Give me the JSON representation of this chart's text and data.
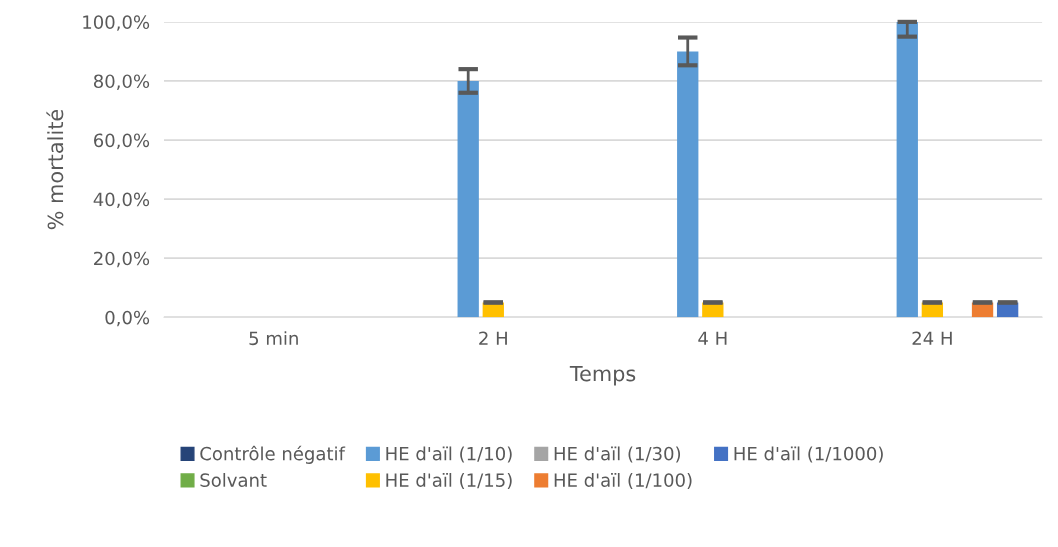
{
  "chart_data": {
    "type": "bar",
    "xlabel": "Temps",
    "ylabel": "% mortalité",
    "categories": [
      "5 min",
      "2 H",
      "4 H",
      "24 H"
    ],
    "series": [
      {
        "name": "Contrôle négatif",
        "color": "#264478",
        "values": [
          0,
          0,
          0,
          0
        ]
      },
      {
        "name": "Solvant",
        "color": "#70ad47",
        "values": [
          0,
          0,
          0,
          0
        ]
      },
      {
        "name": "HE d'aïl (1/10)",
        "color": "#5b9bd5",
        "values": [
          0,
          80,
          90,
          100
        ],
        "errors": [
          null,
          4,
          4.7,
          [
            95,
            100
          ]
        ]
      },
      {
        "name": "HE d'aïl (1/15)",
        "color": "#ffc000",
        "values": [
          0,
          5,
          5,
          5
        ],
        "errors": [
          null,
          0,
          0,
          0
        ]
      },
      {
        "name": "HE d'aïl (1/30)",
        "color": "#a5a5a5",
        "values": [
          0,
          0,
          0,
          0
        ]
      },
      {
        "name": "HE d'aïl (1/100)",
        "color": "#ed7d31",
        "values": [
          0,
          0,
          0,
          5
        ],
        "errors": [
          null,
          null,
          null,
          0
        ]
      },
      {
        "name": "HE d'aïl (1/1000)",
        "color": "#4472c4",
        "values": [
          0,
          0,
          0,
          5
        ],
        "errors": [
          null,
          null,
          null,
          0
        ]
      }
    ],
    "ylim": [
      0,
      100
    ],
    "yticks": [
      {
        "value": 0,
        "label": "0,0%"
      },
      {
        "value": 20,
        "label": "20,0%"
      },
      {
        "value": 40,
        "label": "40,0%"
      },
      {
        "value": 60,
        "label": "60,0%"
      },
      {
        "value": 80,
        "label": "80,0%"
      },
      {
        "value": 100,
        "label": "100,0%"
      }
    ],
    "grid": "y",
    "legend": "bottom"
  }
}
